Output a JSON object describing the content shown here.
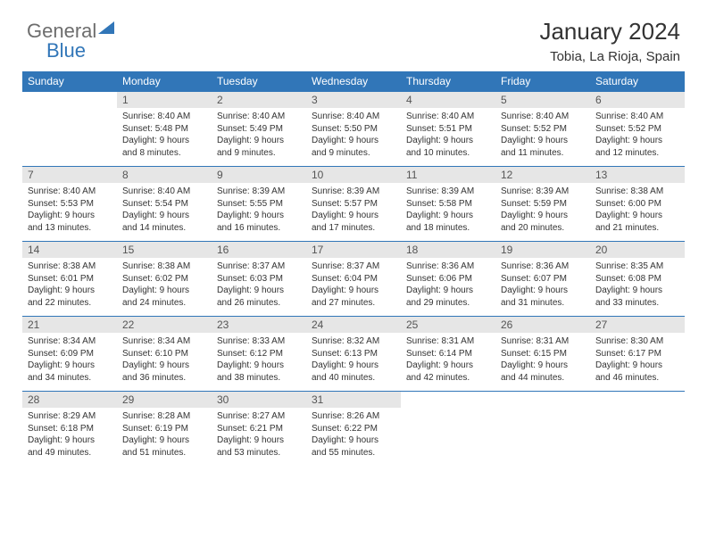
{
  "logo": {
    "part1": "General",
    "part2": "Blue"
  },
  "header": {
    "title": "January 2024",
    "location": "Tobia, La Rioja, Spain"
  },
  "colors": {
    "header_bg": "#3176b8",
    "header_text": "#ffffff",
    "daynum_bg": "#e6e6e6",
    "daynum_text": "#555555",
    "body_text": "#333333",
    "logo_gray": "#6d6d6d",
    "logo_blue": "#3176b8",
    "rule": "#3176b8"
  },
  "dayNames": [
    "Sunday",
    "Monday",
    "Tuesday",
    "Wednesday",
    "Thursday",
    "Friday",
    "Saturday"
  ],
  "weeks": [
    [
      {
        "n": "",
        "lines": []
      },
      {
        "n": "1",
        "lines": [
          "Sunrise: 8:40 AM",
          "Sunset: 5:48 PM",
          "Daylight: 9 hours",
          "and 8 minutes."
        ]
      },
      {
        "n": "2",
        "lines": [
          "Sunrise: 8:40 AM",
          "Sunset: 5:49 PM",
          "Daylight: 9 hours",
          "and 9 minutes."
        ]
      },
      {
        "n": "3",
        "lines": [
          "Sunrise: 8:40 AM",
          "Sunset: 5:50 PM",
          "Daylight: 9 hours",
          "and 9 minutes."
        ]
      },
      {
        "n": "4",
        "lines": [
          "Sunrise: 8:40 AM",
          "Sunset: 5:51 PM",
          "Daylight: 9 hours",
          "and 10 minutes."
        ]
      },
      {
        "n": "5",
        "lines": [
          "Sunrise: 8:40 AM",
          "Sunset: 5:52 PM",
          "Daylight: 9 hours",
          "and 11 minutes."
        ]
      },
      {
        "n": "6",
        "lines": [
          "Sunrise: 8:40 AM",
          "Sunset: 5:52 PM",
          "Daylight: 9 hours",
          "and 12 minutes."
        ]
      }
    ],
    [
      {
        "n": "7",
        "lines": [
          "Sunrise: 8:40 AM",
          "Sunset: 5:53 PM",
          "Daylight: 9 hours",
          "and 13 minutes."
        ]
      },
      {
        "n": "8",
        "lines": [
          "Sunrise: 8:40 AM",
          "Sunset: 5:54 PM",
          "Daylight: 9 hours",
          "and 14 minutes."
        ]
      },
      {
        "n": "9",
        "lines": [
          "Sunrise: 8:39 AM",
          "Sunset: 5:55 PM",
          "Daylight: 9 hours",
          "and 16 minutes."
        ]
      },
      {
        "n": "10",
        "lines": [
          "Sunrise: 8:39 AM",
          "Sunset: 5:57 PM",
          "Daylight: 9 hours",
          "and 17 minutes."
        ]
      },
      {
        "n": "11",
        "lines": [
          "Sunrise: 8:39 AM",
          "Sunset: 5:58 PM",
          "Daylight: 9 hours",
          "and 18 minutes."
        ]
      },
      {
        "n": "12",
        "lines": [
          "Sunrise: 8:39 AM",
          "Sunset: 5:59 PM",
          "Daylight: 9 hours",
          "and 20 minutes."
        ]
      },
      {
        "n": "13",
        "lines": [
          "Sunrise: 8:38 AM",
          "Sunset: 6:00 PM",
          "Daylight: 9 hours",
          "and 21 minutes."
        ]
      }
    ],
    [
      {
        "n": "14",
        "lines": [
          "Sunrise: 8:38 AM",
          "Sunset: 6:01 PM",
          "Daylight: 9 hours",
          "and 22 minutes."
        ]
      },
      {
        "n": "15",
        "lines": [
          "Sunrise: 8:38 AM",
          "Sunset: 6:02 PM",
          "Daylight: 9 hours",
          "and 24 minutes."
        ]
      },
      {
        "n": "16",
        "lines": [
          "Sunrise: 8:37 AM",
          "Sunset: 6:03 PM",
          "Daylight: 9 hours",
          "and 26 minutes."
        ]
      },
      {
        "n": "17",
        "lines": [
          "Sunrise: 8:37 AM",
          "Sunset: 6:04 PM",
          "Daylight: 9 hours",
          "and 27 minutes."
        ]
      },
      {
        "n": "18",
        "lines": [
          "Sunrise: 8:36 AM",
          "Sunset: 6:06 PM",
          "Daylight: 9 hours",
          "and 29 minutes."
        ]
      },
      {
        "n": "19",
        "lines": [
          "Sunrise: 8:36 AM",
          "Sunset: 6:07 PM",
          "Daylight: 9 hours",
          "and 31 minutes."
        ]
      },
      {
        "n": "20",
        "lines": [
          "Sunrise: 8:35 AM",
          "Sunset: 6:08 PM",
          "Daylight: 9 hours",
          "and 33 minutes."
        ]
      }
    ],
    [
      {
        "n": "21",
        "lines": [
          "Sunrise: 8:34 AM",
          "Sunset: 6:09 PM",
          "Daylight: 9 hours",
          "and 34 minutes."
        ]
      },
      {
        "n": "22",
        "lines": [
          "Sunrise: 8:34 AM",
          "Sunset: 6:10 PM",
          "Daylight: 9 hours",
          "and 36 minutes."
        ]
      },
      {
        "n": "23",
        "lines": [
          "Sunrise: 8:33 AM",
          "Sunset: 6:12 PM",
          "Daylight: 9 hours",
          "and 38 minutes."
        ]
      },
      {
        "n": "24",
        "lines": [
          "Sunrise: 8:32 AM",
          "Sunset: 6:13 PM",
          "Daylight: 9 hours",
          "and 40 minutes."
        ]
      },
      {
        "n": "25",
        "lines": [
          "Sunrise: 8:31 AM",
          "Sunset: 6:14 PM",
          "Daylight: 9 hours",
          "and 42 minutes."
        ]
      },
      {
        "n": "26",
        "lines": [
          "Sunrise: 8:31 AM",
          "Sunset: 6:15 PM",
          "Daylight: 9 hours",
          "and 44 minutes."
        ]
      },
      {
        "n": "27",
        "lines": [
          "Sunrise: 8:30 AM",
          "Sunset: 6:17 PM",
          "Daylight: 9 hours",
          "and 46 minutes."
        ]
      }
    ],
    [
      {
        "n": "28",
        "lines": [
          "Sunrise: 8:29 AM",
          "Sunset: 6:18 PM",
          "Daylight: 9 hours",
          "and 49 minutes."
        ]
      },
      {
        "n": "29",
        "lines": [
          "Sunrise: 8:28 AM",
          "Sunset: 6:19 PM",
          "Daylight: 9 hours",
          "and 51 minutes."
        ]
      },
      {
        "n": "30",
        "lines": [
          "Sunrise: 8:27 AM",
          "Sunset: 6:21 PM",
          "Daylight: 9 hours",
          "and 53 minutes."
        ]
      },
      {
        "n": "31",
        "lines": [
          "Sunrise: 8:26 AM",
          "Sunset: 6:22 PM",
          "Daylight: 9 hours",
          "and 55 minutes."
        ]
      },
      {
        "n": "",
        "lines": []
      },
      {
        "n": "",
        "lines": []
      },
      {
        "n": "",
        "lines": []
      }
    ]
  ]
}
